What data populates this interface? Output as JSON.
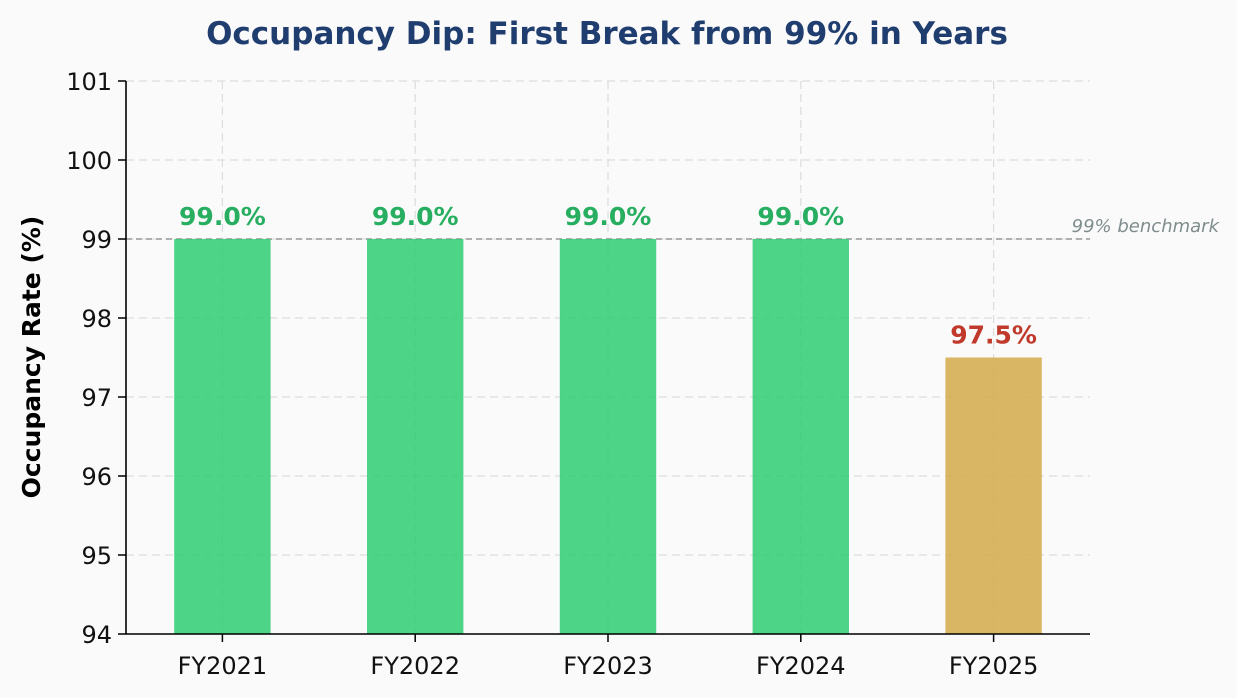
{
  "chart_data": {
    "type": "bar",
    "title": "Occupancy Dip: First Break from 99% in Years",
    "xlabel": "",
    "ylabel": "Occupancy Rate (%)",
    "categories": [
      "FY2021",
      "FY2022",
      "FY2023",
      "FY2024",
      "FY2025"
    ],
    "values": [
      99.0,
      99.0,
      99.0,
      99.0,
      97.5
    ],
    "data_labels": [
      "99.0%",
      "99.0%",
      "99.0%",
      "99.0%",
      "97.5%"
    ],
    "ylim": [
      94,
      101
    ],
    "yticks": [
      94,
      95,
      96,
      97,
      98,
      99,
      100,
      101
    ],
    "grid": true,
    "benchmark": {
      "value": 99,
      "label": "99% benchmark",
      "color": "#b0b0b0",
      "label_color": "#7f8c8d"
    },
    "colors": {
      "title": "#1f3d6e",
      "bar_normal": "#2ecc71",
      "bar_highlight": "#d4ac4d",
      "label_normal": "#27ae60",
      "label_highlight": "#c0392b",
      "grid": "#dddddd",
      "axis": "#000000"
    },
    "highlight_index": 4
  }
}
